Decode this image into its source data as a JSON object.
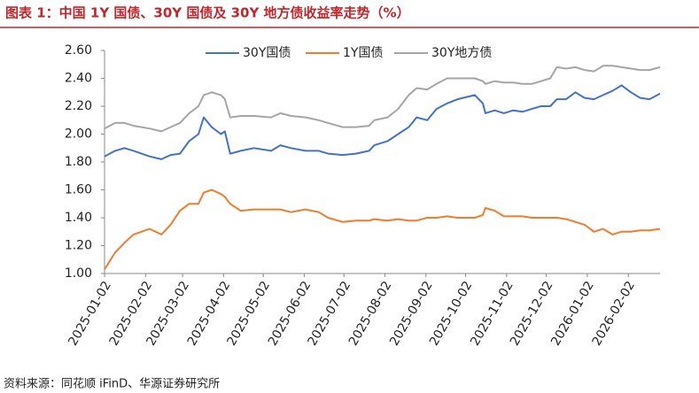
{
  "chart_data": {
    "type": "line",
    "title": "图表 1：中国 1Y 国债、30Y 国债及 30Y 地方债收益率走势（%）",
    "source": "资料来源：同花顺 iFinD、华源证券研究所",
    "x": [
      "2025-01-02",
      "2025-01-10",
      "2025-01-17",
      "2025-01-24",
      "2025-02-05",
      "2025-02-14",
      "2025-02-21",
      "2025-02-28",
      "2025-03-07",
      "2025-03-14",
      "2025-03-18",
      "2025-03-24",
      "2025-03-31",
      "2025-04-03",
      "2025-04-07",
      "2025-04-15",
      "2025-04-25",
      "2025-05-08",
      "2025-05-15",
      "2025-05-23",
      "2025-06-03",
      "2025-06-13",
      "2025-06-20",
      "2025-07-01",
      "2025-07-11",
      "2025-07-21",
      "2025-07-25",
      "2025-08-04",
      "2025-08-12",
      "2025-08-20",
      "2025-08-26",
      "2025-09-03",
      "2025-09-10",
      "2025-09-18",
      "2025-09-26",
      "2025-10-09",
      "2025-10-15",
      "2025-10-17",
      "2025-10-24",
      "2025-10-31",
      "2025-11-07",
      "2025-11-14",
      "2025-11-21",
      "2025-11-28",
      "2025-12-05",
      "2025-12-10",
      "2025-12-17",
      "2025-12-24",
      "2025-12-31",
      "2026-01-07",
      "2026-01-14",
      "2026-01-21",
      "2026-01-28",
      "2026-02-04",
      "2026-02-11",
      "2026-02-18",
      "2026-02-26"
    ],
    "series": [
      {
        "name": "30Y国债",
        "color": "#4472c4",
        "values": [
          1.84,
          1.88,
          1.9,
          1.88,
          1.84,
          1.82,
          1.85,
          1.86,
          1.95,
          2.0,
          2.12,
          2.05,
          2.0,
          2.02,
          1.86,
          1.88,
          1.9,
          1.88,
          1.92,
          1.9,
          1.88,
          1.88,
          1.86,
          1.85,
          1.86,
          1.88,
          1.92,
          1.95,
          2.0,
          2.05,
          2.12,
          2.1,
          2.18,
          2.22,
          2.25,
          2.28,
          2.22,
          2.15,
          2.17,
          2.15,
          2.17,
          2.16,
          2.18,
          2.2,
          2.2,
          2.25,
          2.25,
          2.3,
          2.26,
          2.25,
          2.28,
          2.31,
          2.35,
          2.3,
          2.26,
          2.25,
          2.29
        ]
      },
      {
        "name": "1Y国债",
        "color": "#ed7d31",
        "values": [
          1.03,
          1.15,
          1.22,
          1.28,
          1.32,
          1.28,
          1.35,
          1.45,
          1.5,
          1.5,
          1.58,
          1.6,
          1.57,
          1.55,
          1.5,
          1.45,
          1.46,
          1.46,
          1.46,
          1.44,
          1.46,
          1.44,
          1.4,
          1.37,
          1.38,
          1.38,
          1.39,
          1.38,
          1.39,
          1.38,
          1.38,
          1.4,
          1.4,
          1.41,
          1.4,
          1.4,
          1.42,
          1.47,
          1.45,
          1.41,
          1.41,
          1.41,
          1.4,
          1.4,
          1.4,
          1.4,
          1.39,
          1.37,
          1.35,
          1.3,
          1.32,
          1.28,
          1.3,
          1.3,
          1.31,
          1.31,
          1.32
        ]
      },
      {
        "name": "30Y地方债",
        "color": "#a5a5a5",
        "values": [
          2.04,
          2.08,
          2.08,
          2.06,
          2.04,
          2.02,
          2.05,
          2.08,
          2.15,
          2.2,
          2.28,
          2.3,
          2.28,
          2.25,
          2.12,
          2.13,
          2.13,
          2.12,
          2.15,
          2.13,
          2.12,
          2.1,
          2.08,
          2.05,
          2.05,
          2.06,
          2.1,
          2.12,
          2.18,
          2.28,
          2.33,
          2.32,
          2.36,
          2.4,
          2.4,
          2.4,
          2.38,
          2.36,
          2.38,
          2.37,
          2.37,
          2.36,
          2.36,
          2.38,
          2.4,
          2.48,
          2.47,
          2.48,
          2.46,
          2.45,
          2.49,
          2.49,
          2.48,
          2.47,
          2.46,
          2.46,
          2.48
        ]
      }
    ],
    "xlim": [
      "2025-01-02",
      "2026-02-26"
    ],
    "xticks": [
      "2025-01-02",
      "2025-02-02",
      "2025-03-02",
      "2025-04-02",
      "2025-05-02",
      "2025-06-02",
      "2025-07-02",
      "2025-08-02",
      "2025-09-02",
      "2025-10-02",
      "2025-11-02",
      "2025-12-02",
      "2026-01-02",
      "2026-02-02"
    ],
    "ylim": [
      1.0,
      2.6
    ],
    "yticks": [
      {
        "value": 1.0,
        "label": "1.00"
      },
      {
        "value": 1.2,
        "label": "1.20"
      },
      {
        "value": 1.4,
        "label": "1.40"
      },
      {
        "value": 1.6,
        "label": "1.60"
      },
      {
        "value": 1.8,
        "label": "1.80"
      },
      {
        "value": 2.0,
        "label": "2.00"
      },
      {
        "value": 2.2,
        "label": "2.20"
      },
      {
        "value": 2.4,
        "label": "2.40"
      },
      {
        "value": 2.6,
        "label": "2.60"
      }
    ],
    "grid": false,
    "legend": "top"
  }
}
